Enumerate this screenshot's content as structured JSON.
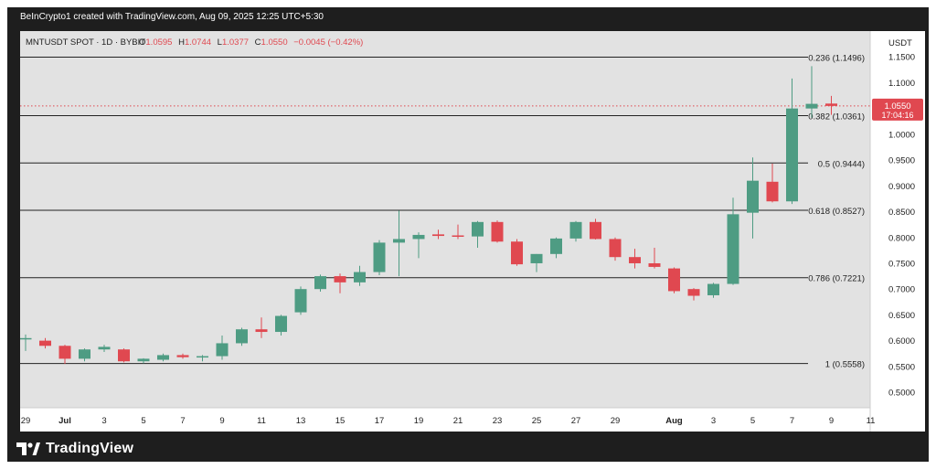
{
  "header_line": "BeInCrypto1 created with TradingView.com, Aug 09, 2025 12:25 UTC+5:30",
  "brand": "TradingView",
  "colors": {
    "up": "#4e9c83",
    "down": "#e04850",
    "plot_bg": "#e2e2e2"
  },
  "chart_data": {
    "type": "candlestick",
    "symbol_label": "MNTUSDT SPOT · 1D · BYBIT",
    "ohlc_label": {
      "o": "1.0595",
      "h": "1.0744",
      "l": "1.0377",
      "c": "1.0550",
      "change": "−0.0045 (−0.42%)"
    },
    "currency": "USDT",
    "ylim": [
      0.47,
      1.2
    ],
    "y_ticks": [
      "1.1500",
      "1.1000",
      "1.0500",
      "1.0000",
      "0.9500",
      "0.9000",
      "0.8500",
      "0.8000",
      "0.7500",
      "0.7000",
      "0.6500",
      "0.6000",
      "0.5500",
      "0.5000"
    ],
    "x_ticks": [
      {
        "day": 0,
        "label": "29"
      },
      {
        "day": 2,
        "label": "Jul"
      },
      {
        "day": 4,
        "label": "3"
      },
      {
        "day": 6,
        "label": "5"
      },
      {
        "day": 8,
        "label": "7"
      },
      {
        "day": 10,
        "label": "9"
      },
      {
        "day": 12,
        "label": "11"
      },
      {
        "day": 14,
        "label": "13"
      },
      {
        "day": 16,
        "label": "15"
      },
      {
        "day": 18,
        "label": "17"
      },
      {
        "day": 20,
        "label": "19"
      },
      {
        "day": 22,
        "label": "21"
      },
      {
        "day": 24,
        "label": "23"
      },
      {
        "day": 26,
        "label": "25"
      },
      {
        "day": 28,
        "label": "27"
      },
      {
        "day": 30,
        "label": "29"
      },
      {
        "day": 33,
        "label": "Aug"
      },
      {
        "day": 35,
        "label": "3"
      },
      {
        "day": 37,
        "label": "5"
      },
      {
        "day": 39,
        "label": "7"
      },
      {
        "day": 41,
        "label": "9"
      },
      {
        "day": 43,
        "label": "11"
      }
    ],
    "candles": [
      {
        "date": "Jun 29",
        "o": 0.605,
        "h": 0.612,
        "l": 0.58,
        "c": 0.605
      },
      {
        "date": "Jun 30",
        "o": 0.6,
        "h": 0.605,
        "l": 0.585,
        "c": 0.59
      },
      {
        "date": "Jul 1",
        "o": 0.59,
        "h": 0.592,
        "l": 0.555,
        "c": 0.565
      },
      {
        "date": "Jul 2",
        "o": 0.565,
        "h": 0.585,
        "l": 0.56,
        "c": 0.583
      },
      {
        "date": "Jul 3",
        "o": 0.583,
        "h": 0.592,
        "l": 0.578,
        "c": 0.588
      },
      {
        "date": "Jul 4",
        "o": 0.583,
        "h": 0.585,
        "l": 0.558,
        "c": 0.56
      },
      {
        "date": "Jul 5",
        "o": 0.56,
        "h": 0.566,
        "l": 0.556,
        "c": 0.565
      },
      {
        "date": "Jul 6",
        "o": 0.563,
        "h": 0.575,
        "l": 0.56,
        "c": 0.572
      },
      {
        "date": "Jul 7",
        "o": 0.572,
        "h": 0.575,
        "l": 0.565,
        "c": 0.568
      },
      {
        "date": "Jul 8",
        "o": 0.568,
        "h": 0.572,
        "l": 0.56,
        "c": 0.57
      },
      {
        "date": "Jul 9",
        "o": 0.57,
        "h": 0.61,
        "l": 0.563,
        "c": 0.595
      },
      {
        "date": "Jul 10",
        "o": 0.595,
        "h": 0.625,
        "l": 0.59,
        "c": 0.622
      },
      {
        "date": "Jul 11",
        "o": 0.622,
        "h": 0.645,
        "l": 0.605,
        "c": 0.617
      },
      {
        "date": "Jul 12",
        "o": 0.617,
        "h": 0.65,
        "l": 0.61,
        "c": 0.648
      },
      {
        "date": "Jul 13",
        "o": 0.655,
        "h": 0.705,
        "l": 0.65,
        "c": 0.7
      },
      {
        "date": "Jul 14",
        "o": 0.7,
        "h": 0.728,
        "l": 0.695,
        "c": 0.725
      },
      {
        "date": "Jul 15",
        "o": 0.725,
        "h": 0.73,
        "l": 0.692,
        "c": 0.713
      },
      {
        "date": "Jul 16",
        "o": 0.713,
        "h": 0.745,
        "l": 0.706,
        "c": 0.733
      },
      {
        "date": "Jul 17",
        "o": 0.733,
        "h": 0.795,
        "l": 0.727,
        "c": 0.79
      },
      {
        "date": "Jul 18",
        "o": 0.79,
        "h": 0.852,
        "l": 0.725,
        "c": 0.797
      },
      {
        "date": "Jul 19",
        "o": 0.797,
        "h": 0.81,
        "l": 0.76,
        "c": 0.805
      },
      {
        "date": "Jul 20",
        "o": 0.806,
        "h": 0.815,
        "l": 0.797,
        "c": 0.803
      },
      {
        "date": "Jul 21",
        "o": 0.804,
        "h": 0.825,
        "l": 0.797,
        "c": 0.802
      },
      {
        "date": "Jul 22",
        "o": 0.802,
        "h": 0.832,
        "l": 0.78,
        "c": 0.83
      },
      {
        "date": "Jul 23",
        "o": 0.83,
        "h": 0.833,
        "l": 0.79,
        "c": 0.792
      },
      {
        "date": "Jul 24",
        "o": 0.792,
        "h": 0.797,
        "l": 0.745,
        "c": 0.748
      },
      {
        "date": "Jul 25",
        "o": 0.75,
        "h": 0.768,
        "l": 0.733,
        "c": 0.768
      },
      {
        "date": "Jul 26",
        "o": 0.768,
        "h": 0.8,
        "l": 0.76,
        "c": 0.798
      },
      {
        "date": "Jul 27",
        "o": 0.798,
        "h": 0.832,
        "l": 0.792,
        "c": 0.83
      },
      {
        "date": "Jul 28",
        "o": 0.83,
        "h": 0.836,
        "l": 0.796,
        "c": 0.797
      },
      {
        "date": "Jul 29",
        "o": 0.797,
        "h": 0.8,
        "l": 0.755,
        "c": 0.762
      },
      {
        "date": "Jul 30",
        "o": 0.762,
        "h": 0.778,
        "l": 0.74,
        "c": 0.75
      },
      {
        "date": "Jul 31",
        "o": 0.75,
        "h": 0.78,
        "l": 0.74,
        "c": 0.743
      },
      {
        "date": "Aug 1",
        "o": 0.74,
        "h": 0.742,
        "l": 0.692,
        "c": 0.696
      },
      {
        "date": "Aug 2",
        "o": 0.7,
        "h": 0.702,
        "l": 0.678,
        "c": 0.687
      },
      {
        "date": "Aug 3",
        "o": 0.688,
        "h": 0.712,
        "l": 0.683,
        "c": 0.71
      },
      {
        "date": "Aug 4",
        "o": 0.71,
        "h": 0.877,
        "l": 0.708,
        "c": 0.845
      },
      {
        "date": "Aug 5",
        "o": 0.848,
        "h": 0.955,
        "l": 0.798,
        "c": 0.91
      },
      {
        "date": "Aug 6",
        "o": 0.908,
        "h": 0.943,
        "l": 0.868,
        "c": 0.87
      },
      {
        "date": "Aug 7",
        "o": 0.87,
        "h": 1.108,
        "l": 0.865,
        "c": 1.05
      },
      {
        "date": "Aug 8",
        "o": 1.05,
        "h": 1.132,
        "l": 1.032,
        "c": 1.059
      },
      {
        "date": "Aug 9",
        "o": 1.0595,
        "h": 1.0744,
        "l": 1.0377,
        "c": 1.055
      }
    ],
    "fib_levels": [
      {
        "level": 0.236,
        "price": 1.1496,
        "label": "0.236 (1.1496)"
      },
      {
        "level": 0.382,
        "price": 1.0361,
        "label": "0.382 (1.0361)"
      },
      {
        "level": 0.5,
        "price": 0.9444,
        "label": "0.5 (0.9444)"
      },
      {
        "level": 0.618,
        "price": 0.8527,
        "label": "0.618 (0.8527)"
      },
      {
        "level": 0.786,
        "price": 0.7221,
        "label": "0.786 (0.7221)"
      },
      {
        "level": 1,
        "price": 0.5558,
        "label": "1 (0.5558)"
      }
    ],
    "last_price": {
      "value": 1.055,
      "label": "1.0550",
      "countdown": "17:04:16"
    }
  }
}
